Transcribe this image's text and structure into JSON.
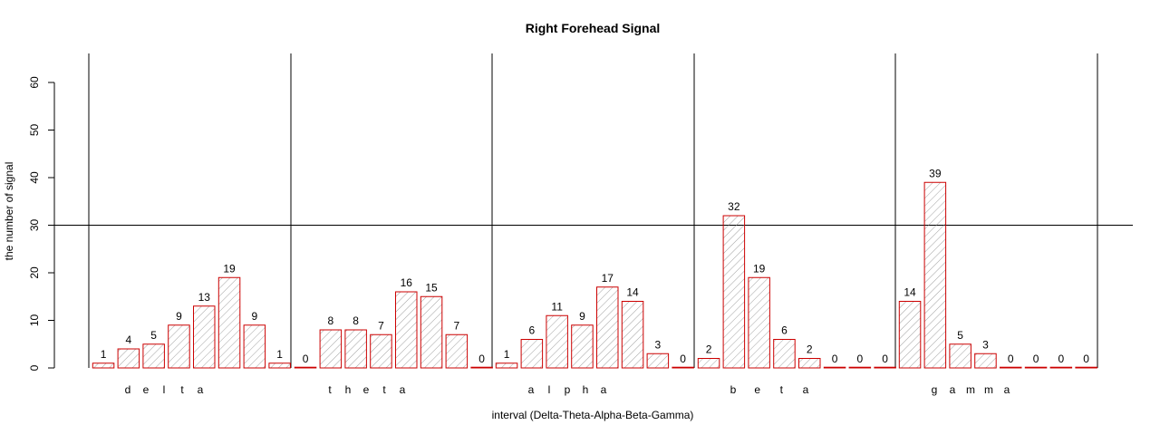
{
  "chart_data": {
    "type": "bar",
    "title": "Right Forehead Signal",
    "xlabel": "interval (Delta-Theta-Alpha-Beta-Gamma)",
    "ylabel": "the number of signal",
    "ylim": [
      0,
      60
    ],
    "yticks": [
      0,
      10,
      20,
      30,
      40,
      50,
      60
    ],
    "reference_line": 30,
    "bar_color": "#cc0000",
    "hatch_color": "#888888",
    "groups": [
      {
        "name": "delta",
        "letters": [
          "d",
          "e",
          "l",
          "t",
          "a"
        ],
        "values": [
          1,
          4,
          5,
          9,
          13,
          19,
          9,
          1
        ]
      },
      {
        "name": "theta",
        "letters": [
          "t",
          "h",
          "e",
          "t",
          "a"
        ],
        "values": [
          0,
          8,
          8,
          7,
          16,
          15,
          7,
          0
        ]
      },
      {
        "name": "alpha",
        "letters": [
          "a",
          "l",
          "p",
          "h",
          "a"
        ],
        "values": [
          1,
          6,
          11,
          9,
          17,
          14,
          3,
          0
        ]
      },
      {
        "name": "beta",
        "letters": [
          "b",
          "e",
          "t",
          "a"
        ],
        "values": [
          2,
          32,
          19,
          6,
          2,
          0,
          0,
          0
        ]
      },
      {
        "name": "gamma",
        "letters": [
          "g",
          "a",
          "m",
          "m",
          "a"
        ],
        "values": [
          14,
          39,
          5,
          3,
          0,
          0,
          0,
          0
        ]
      }
    ]
  }
}
